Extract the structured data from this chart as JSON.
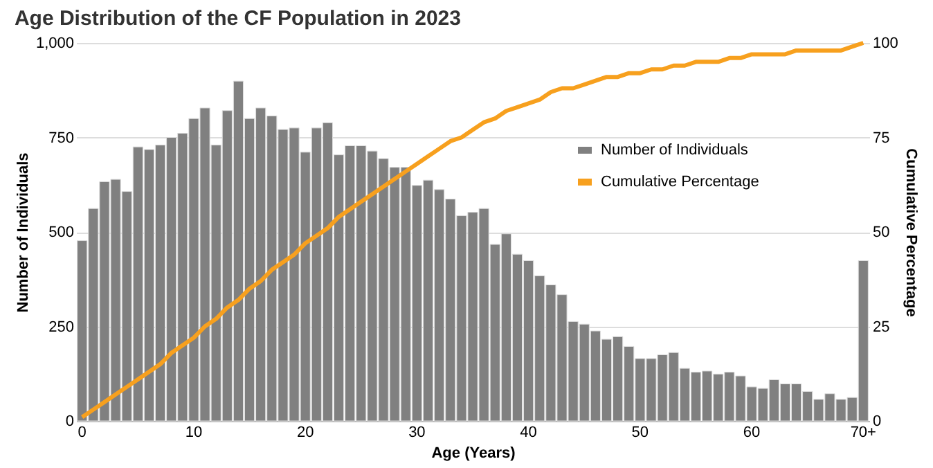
{
  "chart_data": {
    "type": "bar",
    "title": "Age Distribution of the CF Population in 2023",
    "xlabel": "Age (Years)",
    "ylabel": "Number of Individuals",
    "y2label": "Cumulative Percentage",
    "categories": [
      "0",
      null,
      null,
      null,
      null,
      null,
      null,
      null,
      null,
      null,
      "10",
      null,
      null,
      null,
      null,
      null,
      null,
      null,
      null,
      null,
      "20",
      null,
      null,
      null,
      null,
      null,
      null,
      null,
      null,
      null,
      "30",
      null,
      null,
      null,
      null,
      null,
      null,
      null,
      null,
      null,
      "40",
      null,
      null,
      null,
      null,
      null,
      null,
      null,
      null,
      null,
      "50",
      null,
      null,
      null,
      null,
      null,
      null,
      null,
      null,
      null,
      "60",
      null,
      null,
      null,
      null,
      null,
      null,
      null,
      null,
      null,
      "70+"
    ],
    "series": [
      {
        "name": "Number of Individuals",
        "color": "#808080",
        "values": [
          477,
          562,
          633,
          639,
          607,
          725,
          718,
          730,
          750,
          761,
          800,
          828,
          730,
          821,
          899,
          800,
          828,
          807,
          771,
          775,
          711,
          775,
          789,
          704,
          728,
          728,
          714,
          694,
          671,
          671,
          623,
          637,
          612,
          587,
          543,
          552,
          562,
          467,
          495,
          441,
          424,
          384,
          360,
          334,
          263,
          256,
          238,
          216,
          223,
          197,
          165,
          165,
          175,
          181,
          139,
          129,
          132,
          124,
          129,
          119,
          90,
          86,
          109,
          98,
          98,
          78,
          57,
          72,
          57,
          62,
          424
        ]
      },
      {
        "name": "Cumulative Percentage",
        "type": "line",
        "axis": "y2",
        "color": "#f7a01e",
        "values": [
          1,
          3,
          5,
          7,
          9,
          11,
          13,
          15,
          18,
          20,
          22,
          25,
          27,
          30,
          32,
          35,
          37,
          40,
          42,
          44,
          47,
          49,
          51,
          54,
          56,
          58,
          60,
          62,
          64,
          66,
          68,
          70,
          72,
          74,
          75,
          77,
          79,
          80,
          82,
          83,
          84,
          85,
          87,
          88,
          88,
          89,
          90,
          91,
          91,
          92,
          92,
          93,
          93,
          94,
          94,
          95,
          95,
          95,
          96,
          96,
          97,
          97,
          97,
          97,
          98,
          98,
          98,
          98,
          98,
          99,
          100
        ]
      }
    ],
    "ylim": [
      0,
      1000
    ],
    "yticks": [
      0,
      250,
      500,
      750,
      {
        "value": 1000,
        "label": "1,000"
      }
    ],
    "y2lim": [
      0,
      100
    ],
    "y2ticks": [
      0,
      25,
      50,
      75,
      100
    ],
    "grid": "y",
    "legend": "right",
    "marker": "none",
    "line_style": "solid"
  }
}
